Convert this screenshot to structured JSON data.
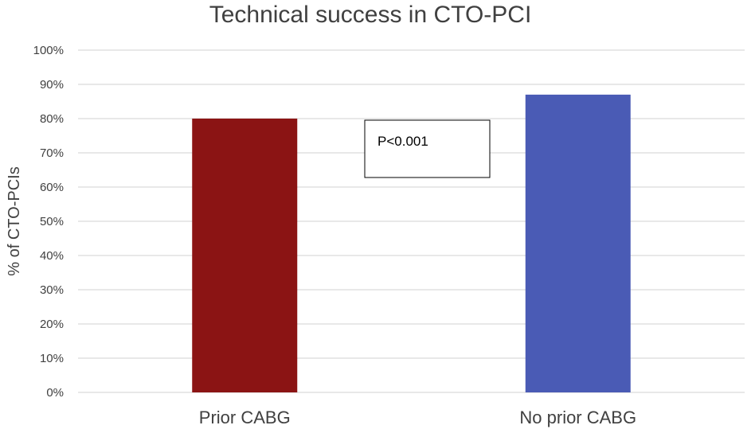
{
  "chart_data": {
    "type": "bar",
    "title": "Technical success in CTO-PCI",
    "xlabel": "",
    "ylabel": "% of CTO-PCIs",
    "categories": [
      "Prior CABG",
      "No prior CABG"
    ],
    "values": [
      80,
      87
    ],
    "bar_colors": [
      "#8B1414",
      "#4A5BB5"
    ],
    "ylim": [
      0,
      100
    ],
    "yticks": [
      0,
      10,
      20,
      30,
      40,
      50,
      60,
      70,
      80,
      90,
      100
    ],
    "ytick_labels": [
      "0%",
      "10%",
      "20%",
      "30%",
      "40%",
      "50%",
      "60%",
      "70%",
      "80%",
      "90%",
      "100%"
    ],
    "grid": true,
    "gridline_color": "#d9d9d9",
    "legend": "none",
    "annotation": "P<0.001"
  }
}
